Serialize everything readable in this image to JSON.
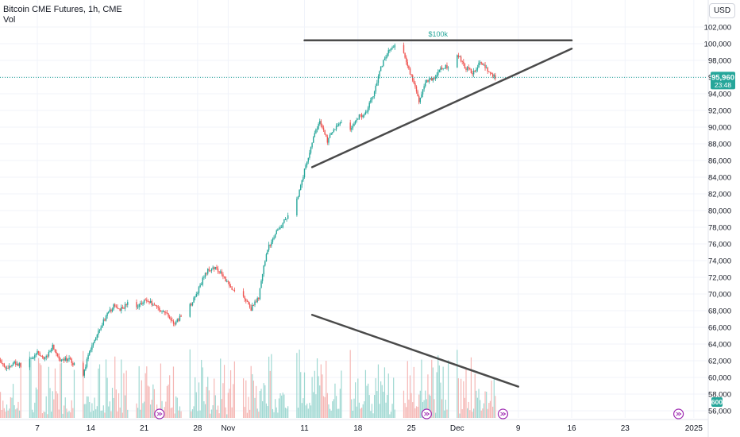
{
  "header": {
    "title": "Bitcoin CME Futures, 1h, CME",
    "volume_label": "Vol",
    "currency": "USD"
  },
  "colors": {
    "up": "#26a69a",
    "down": "#ef5350",
    "vol_up": "#9fd8d2",
    "vol_down": "#f5b7b5",
    "trendline": "#4a4a4a",
    "price_line": "#26a69a",
    "annotation": "#26a69a",
    "event_icon": "#9c27b0"
  },
  "price_tag": {
    "price": "95,960",
    "countdown": "23:48"
  },
  "volume_tag": "600",
  "chart_data": {
    "type": "candlestick",
    "symbol": "Bitcoin CME Futures",
    "interval": "1h",
    "exchange": "CME",
    "currency": "USD",
    "ylim": [
      55500,
      104200
    ],
    "y_ticks": [
      56000,
      58000,
      60000,
      62000,
      64000,
      66000,
      68000,
      70000,
      72000,
      74000,
      76000,
      78000,
      80000,
      82000,
      84000,
      86000,
      88000,
      90000,
      92000,
      94000,
      96000,
      98000,
      100000,
      102000
    ],
    "y_tick_labels": [
      "56,000",
      "58,000",
      "60,000",
      "62,000",
      "64,000",
      "66,000",
      "68,000",
      "70,000",
      "72,000",
      "74,000",
      "76,000",
      "78,000",
      "80,000",
      "82,000",
      "84,000",
      "86,000",
      "88,000",
      "90,000",
      "92,000",
      "94,000",
      "96,000",
      "98,000",
      "100,000",
      "102,000"
    ],
    "x_tick_labels": [
      "7",
      "14",
      "21",
      "28",
      "Nov",
      "11",
      "18",
      "25",
      "Dec",
      "9",
      "16",
      "23",
      "2025"
    ],
    "x_tick_dates": [
      "2024-10-07",
      "2024-10-14",
      "2024-10-21",
      "2024-10-28",
      "2024-11-01",
      "2024-11-11",
      "2024-11-18",
      "2024-11-25",
      "2024-12-01",
      "2024-12-09",
      "2024-12-16",
      "2024-12-23",
      "2025-01-01"
    ],
    "last_price": 95960,
    "price_path": [
      [
        "2024-10-02",
        62300
      ],
      [
        "2024-10-03",
        61000
      ],
      [
        "2024-10-04",
        61800
      ],
      [
        "2024-10-05",
        61300
      ],
      [
        "2024-10-07",
        62900
      ],
      [
        "2024-10-08",
        62200
      ],
      [
        "2024-10-09",
        63800
      ],
      [
        "2024-10-10",
        61800
      ],
      [
        "2024-10-11",
        62300
      ],
      [
        "2024-10-13",
        60400
      ],
      [
        "2024-10-14",
        63500
      ],
      [
        "2024-10-15",
        65600
      ],
      [
        "2024-10-16",
        67300
      ],
      [
        "2024-10-17",
        68500
      ],
      [
        "2024-10-18",
        68200
      ],
      [
        "2024-10-19",
        69000
      ],
      [
        "2024-10-20",
        68400
      ],
      [
        "2024-10-21",
        69300
      ],
      [
        "2024-10-22",
        68900
      ],
      [
        "2024-10-23",
        68200
      ],
      [
        "2024-10-24",
        67600
      ],
      [
        "2024-10-25",
        66300
      ],
      [
        "2024-10-26",
        67700
      ],
      [
        "2024-10-27",
        68600
      ],
      [
        "2024-10-28",
        70200
      ],
      [
        "2024-10-29",
        72500
      ],
      [
        "2024-10-30",
        73300
      ],
      [
        "2024-10-31",
        72700
      ],
      [
        "2024-11-01",
        71300
      ],
      [
        "2024-11-02",
        70100
      ],
      [
        "2024-11-03",
        69700
      ],
      [
        "2024-11-04",
        68200
      ],
      [
        "2024-11-05",
        69600
      ],
      [
        "2024-11-06",
        75000
      ],
      [
        "2024-11-07",
        77000
      ],
      [
        "2024-11-08",
        78200
      ],
      [
        "2024-11-10",
        81300
      ],
      [
        "2024-11-11",
        84800
      ],
      [
        "2024-11-12",
        88200
      ],
      [
        "2024-11-13",
        90800
      ],
      [
        "2024-11-14",
        88300
      ],
      [
        "2024-11-15",
        89900
      ],
      [
        "2024-11-16",
        90900
      ],
      [
        "2024-11-17",
        89600
      ],
      [
        "2024-11-18",
        91200
      ],
      [
        "2024-11-19",
        91700
      ],
      [
        "2024-11-20",
        93900
      ],
      [
        "2024-11-21",
        97200
      ],
      [
        "2024-11-22",
        99200
      ],
      [
        "2024-11-23",
        99700
      ],
      [
        "2024-11-24",
        98700
      ],
      [
        "2024-11-25",
        96100
      ],
      [
        "2024-11-26",
        93200
      ],
      [
        "2024-11-27",
        95600
      ],
      [
        "2024-11-28",
        95900
      ],
      [
        "2024-11-29",
        97100
      ],
      [
        "2024-11-30",
        97300
      ],
      [
        "2024-12-01",
        98800
      ],
      [
        "2024-12-02",
        97200
      ],
      [
        "2024-12-03",
        96500
      ],
      [
        "2024-12-04",
        97800
      ],
      [
        "2024-12-05",
        96700
      ],
      [
        "2024-12-06",
        95960
      ]
    ],
    "annotations": [
      {
        "type": "horizontal_resistance",
        "label": "$100k",
        "from": [
          "2024-11-11",
          100400
        ],
        "to": [
          "2024-12-16",
          100400
        ]
      },
      {
        "type": "rising_support",
        "from": [
          "2024-11-12",
          85200
        ],
        "to": [
          "2024-12-16",
          99400
        ]
      },
      {
        "type": "falling_volume_trend",
        "from": [
          "2024-11-12",
          67500
        ],
        "to": [
          "2024-12-09",
          58900
        ]
      }
    ],
    "events": [
      "2024-10-23",
      "2024-11-27",
      "2024-12-07",
      "2024-12-30"
    ],
    "grid": true,
    "legend": "top-left"
  }
}
